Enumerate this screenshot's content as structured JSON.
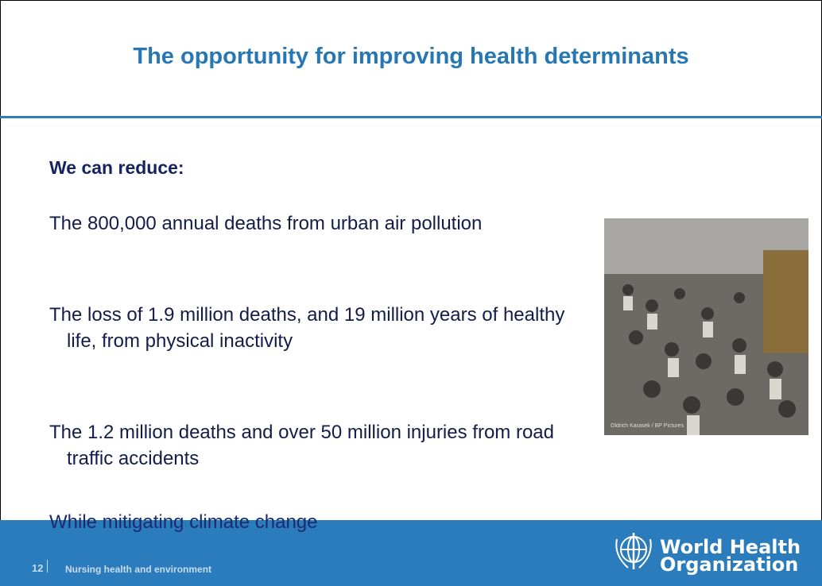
{
  "header": {
    "title": "The opportunity for improving health determinants"
  },
  "body": {
    "heading": "We can reduce:",
    "paragraphs": [
      "The 800,000 annual deaths from urban air pollution",
      "The loss of 1.9 million deaths, and 19 million years of healthy life, from physical inactivity",
      "The 1.2 million deaths and over 50 million injuries from road traffic accidents",
      "While mitigating climate change"
    ]
  },
  "image": {
    "credit": "Oldrich Karasek / BP Pictures"
  },
  "footer": {
    "page_number": "12",
    "text": "Nursing health and environment",
    "logo_text": [
      "World Health",
      "Organization"
    ]
  }
}
